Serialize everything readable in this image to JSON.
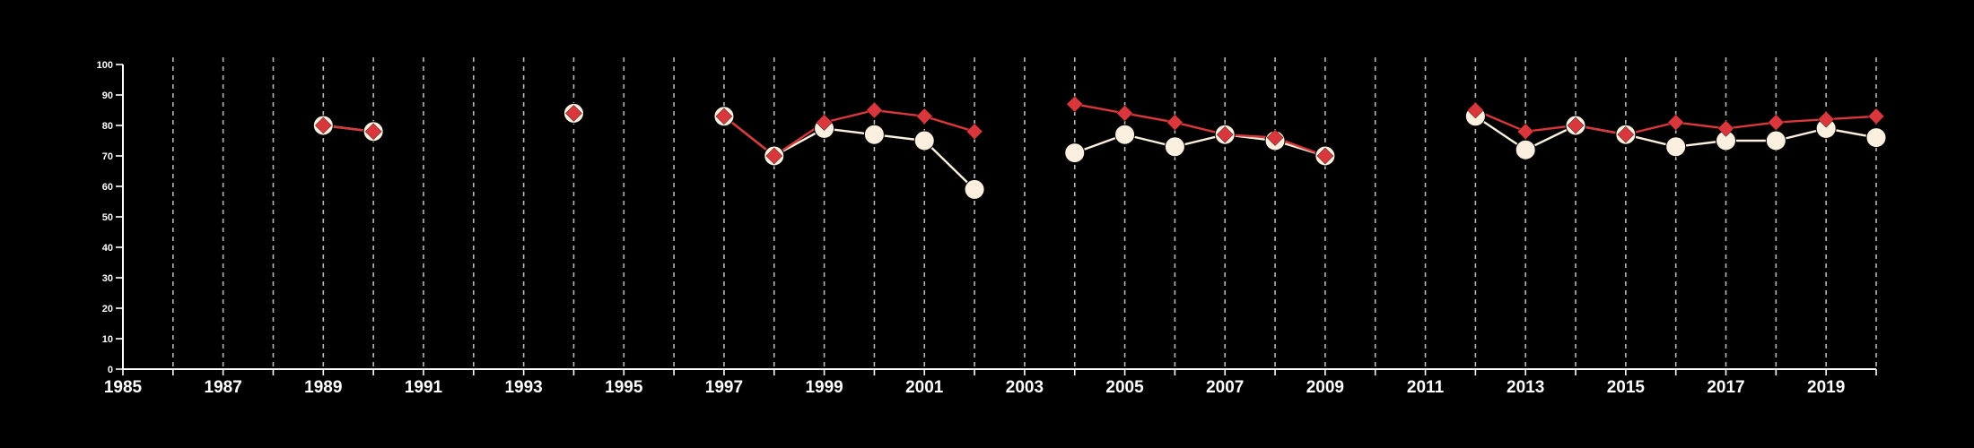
{
  "chart_data": {
    "type": "line",
    "title": "",
    "xlabel": "",
    "ylabel": "",
    "xlim": [
      1985,
      2020
    ],
    "ylim": [
      0,
      100
    ],
    "x_ticks": [
      1985,
      1987,
      1989,
      1991,
      1993,
      1995,
      1997,
      1999,
      2001,
      2003,
      2005,
      2007,
      2009,
      2011,
      2013,
      2015,
      2017,
      2019
    ],
    "y_ticks": [
      0,
      10,
      20,
      30,
      40,
      50,
      60,
      70,
      80,
      90,
      100
    ],
    "grid": "vertical-dashed-yearly",
    "legend": "none",
    "background_color": "#000000",
    "series": [
      {
        "marker": "circle",
        "color": "#fbefdf",
        "points": [
          [
            1989,
            80
          ],
          [
            1990,
            78
          ],
          [
            1994,
            84
          ],
          [
            1997,
            83
          ],
          [
            1998,
            70
          ],
          [
            1999,
            79
          ],
          [
            2000,
            77
          ],
          [
            2001,
            75
          ],
          [
            2002,
            59
          ],
          [
            2004,
            71
          ],
          [
            2005,
            77
          ],
          [
            2006,
            73
          ],
          [
            2007,
            77
          ],
          [
            2008,
            75
          ],
          [
            2009,
            70
          ],
          [
            2012,
            83
          ],
          [
            2013,
            72
          ],
          [
            2014,
            80
          ],
          [
            2015,
            77
          ],
          [
            2016,
            73
          ],
          [
            2017,
            75
          ],
          [
            2018,
            75
          ],
          [
            2019,
            79
          ],
          [
            2020,
            76
          ]
        ]
      },
      {
        "marker": "diamond",
        "color": "#d9373b",
        "points": [
          [
            1989,
            80
          ],
          [
            1990,
            78
          ],
          [
            1994,
            84
          ],
          [
            1997,
            83
          ],
          [
            1998,
            70
          ],
          [
            1999,
            81
          ],
          [
            2000,
            85
          ],
          [
            2001,
            83
          ],
          [
            2002,
            78
          ],
          [
            2004,
            87
          ],
          [
            2005,
            84
          ],
          [
            2006,
            81
          ],
          [
            2007,
            77
          ],
          [
            2008,
            76
          ],
          [
            2009,
            70
          ],
          [
            2012,
            85
          ],
          [
            2013,
            78
          ],
          [
            2014,
            80
          ],
          [
            2015,
            77
          ],
          [
            2016,
            81
          ],
          [
            2017,
            79
          ],
          [
            2018,
            81
          ],
          [
            2019,
            82
          ],
          [
            2020,
            83
          ]
        ]
      }
    ]
  }
}
